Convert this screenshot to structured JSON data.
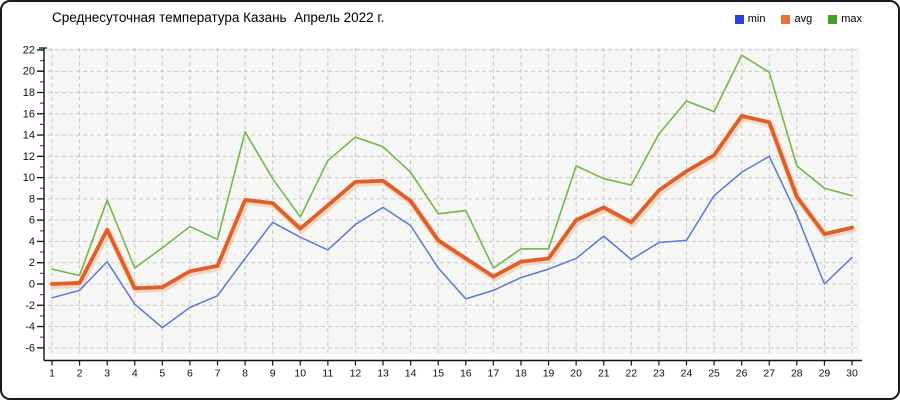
{
  "header": {
    "title": "Среднесуточная температура Казань  Апрель 2022 г."
  },
  "legend": {
    "items": [
      {
        "label": "min",
        "color": "#2545d6"
      },
      {
        "label": "avg",
        "color": "#e8712f"
      },
      {
        "label": "max",
        "color": "#3fa320"
      }
    ],
    "position": "top-right"
  },
  "chart_data": {
    "type": "line",
    "title": "Среднесуточная температура Казань  Апрель 2022 г.",
    "xlabel": "",
    "ylabel": "",
    "x": [
      1,
      2,
      3,
      4,
      5,
      6,
      7,
      8,
      9,
      10,
      11,
      12,
      13,
      14,
      15,
      16,
      17,
      18,
      19,
      20,
      21,
      22,
      23,
      24,
      25,
      26,
      27,
      28,
      29,
      30
    ],
    "series": [
      {
        "name": "min",
        "color": "#5a78dc",
        "width": 1.5,
        "values": [
          -1.3,
          -0.6,
          2.1,
          -1.9,
          -4.1,
          -2.2,
          -1.1,
          2.4,
          5.8,
          4.4,
          3.2,
          5.6,
          7.2,
          5.5,
          1.5,
          -1.4,
          -0.6,
          0.6,
          1.4,
          2.4,
          4.5,
          2.3,
          3.9,
          4.1,
          8.3,
          10.5,
          12.0,
          6.5,
          0.0,
          2.5
        ]
      },
      {
        "name": "avg",
        "color": "#df5f2a",
        "width": 3.8,
        "halo": "#f2bd97",
        "values": [
          0.0,
          0.1,
          5.1,
          -0.4,
          -0.3,
          1.2,
          1.7,
          7.9,
          7.6,
          5.2,
          7.4,
          9.6,
          9.7,
          7.8,
          4.1,
          2.4,
          0.7,
          2.1,
          2.4,
          6.0,
          7.2,
          5.8,
          8.8,
          10.6,
          12.1,
          15.8,
          15.2,
          8.2,
          4.7,
          5.3
        ]
      },
      {
        "name": "max",
        "color": "#75b74b",
        "width": 1.6,
        "values": [
          1.4,
          0.8,
          7.9,
          1.5,
          3.4,
          5.4,
          4.2,
          14.3,
          9.9,
          6.3,
          11.6,
          13.8,
          12.9,
          10.5,
          6.6,
          6.9,
          1.5,
          3.3,
          3.3,
          11.1,
          9.9,
          9.3,
          14.1,
          17.2,
          16.2,
          21.5,
          19.9,
          11.1,
          9.0,
          8.3
        ]
      }
    ],
    "ylim": [
      -6,
      22
    ],
    "yticks": [
      22,
      20,
      18,
      16,
      14,
      12,
      10,
      8,
      6,
      4,
      2,
      0,
      -2,
      -4,
      -6
    ],
    "ytick_step": 2,
    "grid": "dashed",
    "plot_bg": "#f6f6f4",
    "grid_color": "#c9c9c9",
    "axis_color": "#111111",
    "tick_label_color": "#111111",
    "minor_tick_color": "#cc2222",
    "legend_position": "top-right"
  }
}
